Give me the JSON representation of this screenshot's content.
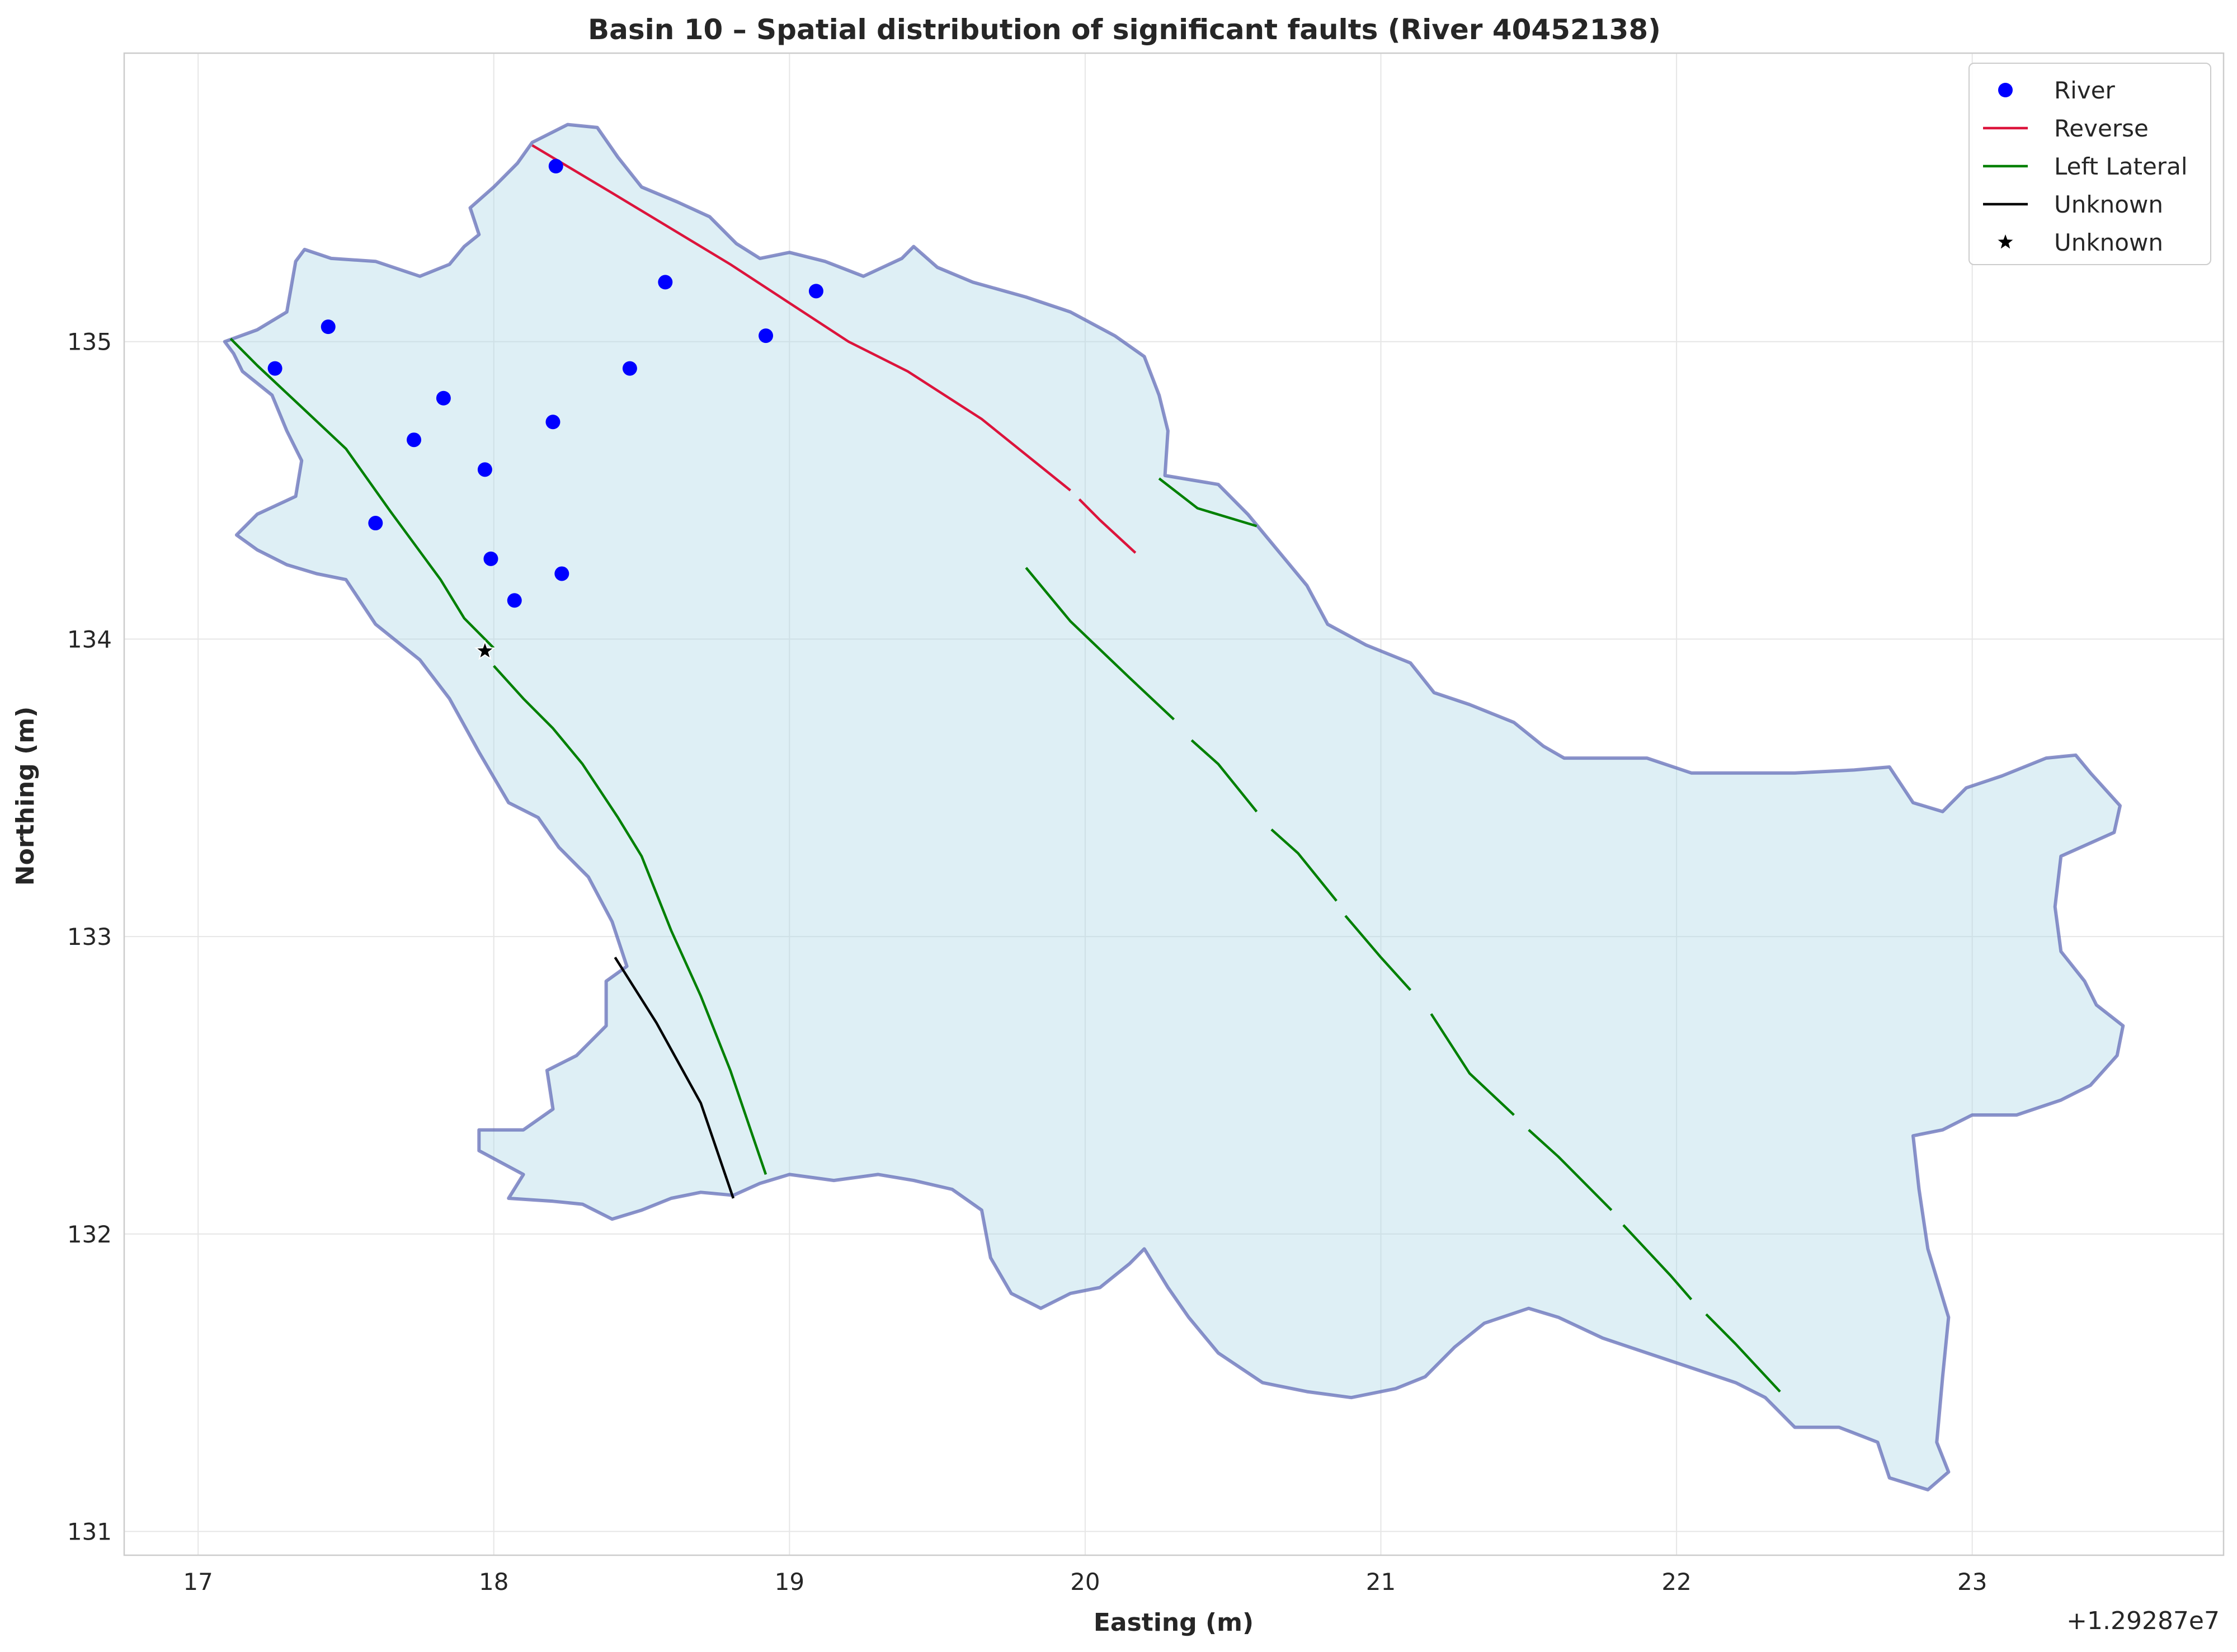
{
  "chart_data": {
    "type": "scatter",
    "title": "Basin 10 – Spatial distribution of significant faults (River 40452138)",
    "xlabel": "Easting (m)",
    "ylabel": "Northing (m)",
    "offset_text": "+1.29287e7",
    "xlim": [
      16.75,
      23.85
    ],
    "ylim": [
      130.92,
      135.97
    ],
    "xticks": [
      17,
      18,
      19,
      20,
      21,
      22,
      23
    ],
    "xtick_labels": [
      "17",
      "18",
      "19",
      "20",
      "21",
      "22",
      "23"
    ],
    "yticks": [
      131,
      132,
      133,
      134,
      135
    ],
    "ytick_labels": [
      "131",
      "132",
      "133",
      "134",
      "135"
    ],
    "grid": true,
    "legend_position": "upper right",
    "legend": [
      {
        "label": "River",
        "kind": "dot",
        "color": "#0000ff"
      },
      {
        "label": "Reverse",
        "kind": "line",
        "color": "#dc143c"
      },
      {
        "label": "Left Lateral",
        "kind": "line",
        "color": "#008000"
      },
      {
        "label": "Unknown",
        "kind": "line",
        "color": "#000000"
      },
      {
        "label": "Unknown",
        "kind": "star",
        "color": "#000000"
      }
    ],
    "basin": {
      "fill": "#add8e6",
      "edge": "#5a64b4",
      "outline": [
        [
          17.09,
          135.0
        ],
        [
          17.2,
          135.04
        ],
        [
          17.3,
          135.1
        ],
        [
          17.33,
          135.27
        ],
        [
          17.36,
          135.31
        ],
        [
          17.45,
          135.28
        ],
        [
          17.6,
          135.27
        ],
        [
          17.75,
          135.22
        ],
        [
          17.85,
          135.26
        ],
        [
          17.9,
          135.32
        ],
        [
          17.95,
          135.36
        ],
        [
          17.92,
          135.45
        ],
        [
          18.0,
          135.52
        ],
        [
          18.08,
          135.6
        ],
        [
          18.13,
          135.67
        ],
        [
          18.25,
          135.73
        ],
        [
          18.35,
          135.72
        ],
        [
          18.42,
          135.62
        ],
        [
          18.5,
          135.52
        ],
        [
          18.62,
          135.47
        ],
        [
          18.73,
          135.42
        ],
        [
          18.82,
          135.33
        ],
        [
          18.9,
          135.28
        ],
        [
          19.0,
          135.3
        ],
        [
          19.12,
          135.27
        ],
        [
          19.25,
          135.22
        ],
        [
          19.38,
          135.28
        ],
        [
          19.42,
          135.32
        ],
        [
          19.5,
          135.25
        ],
        [
          19.62,
          135.2
        ],
        [
          19.8,
          135.15
        ],
        [
          19.95,
          135.1
        ],
        [
          20.1,
          135.02
        ],
        [
          20.2,
          134.95
        ],
        [
          20.25,
          134.82
        ],
        [
          20.28,
          134.7
        ],
        [
          20.27,
          134.55
        ],
        [
          20.45,
          134.52
        ],
        [
          20.55,
          134.42
        ],
        [
          20.65,
          134.3
        ],
        [
          20.75,
          134.18
        ],
        [
          20.82,
          134.05
        ],
        [
          20.95,
          133.98
        ],
        [
          21.1,
          133.92
        ],
        [
          21.18,
          133.82
        ],
        [
          21.3,
          133.78
        ],
        [
          21.45,
          133.72
        ],
        [
          21.55,
          133.64
        ],
        [
          21.62,
          133.6
        ],
        [
          21.75,
          133.6
        ],
        [
          21.9,
          133.6
        ],
        [
          22.05,
          133.55
        ],
        [
          22.2,
          133.55
        ],
        [
          22.4,
          133.55
        ],
        [
          22.6,
          133.56
        ],
        [
          22.72,
          133.57
        ],
        [
          22.8,
          133.45
        ],
        [
          22.9,
          133.42
        ],
        [
          22.98,
          133.5
        ],
        [
          23.1,
          133.54
        ],
        [
          23.25,
          133.6
        ],
        [
          23.35,
          133.61
        ],
        [
          23.4,
          133.55
        ],
        [
          23.5,
          133.44
        ],
        [
          23.48,
          133.35
        ],
        [
          23.3,
          133.27
        ],
        [
          23.28,
          133.1
        ],
        [
          23.3,
          132.95
        ],
        [
          23.38,
          132.85
        ],
        [
          23.42,
          132.77
        ],
        [
          23.51,
          132.7
        ],
        [
          23.49,
          132.6
        ],
        [
          23.4,
          132.5
        ],
        [
          23.3,
          132.45
        ],
        [
          23.15,
          132.4
        ],
        [
          23.0,
          132.4
        ],
        [
          22.9,
          132.35
        ],
        [
          22.8,
          132.33
        ],
        [
          22.82,
          132.15
        ],
        [
          22.85,
          131.95
        ],
        [
          22.92,
          131.72
        ],
        [
          22.9,
          131.52
        ],
        [
          22.88,
          131.3
        ],
        [
          22.92,
          131.2
        ],
        [
          22.85,
          131.14
        ],
        [
          22.72,
          131.18
        ],
        [
          22.68,
          131.3
        ],
        [
          22.55,
          131.35
        ],
        [
          22.4,
          131.35
        ],
        [
          22.3,
          131.45
        ],
        [
          22.2,
          131.5
        ],
        [
          22.05,
          131.55
        ],
        [
          21.9,
          131.6
        ],
        [
          21.75,
          131.65
        ],
        [
          21.6,
          131.72
        ],
        [
          21.5,
          131.75
        ],
        [
          21.35,
          131.7
        ],
        [
          21.25,
          131.62
        ],
        [
          21.15,
          131.52
        ],
        [
          21.05,
          131.48
        ],
        [
          20.9,
          131.45
        ],
        [
          20.75,
          131.47
        ],
        [
          20.6,
          131.5
        ],
        [
          20.45,
          131.6
        ],
        [
          20.35,
          131.72
        ],
        [
          20.28,
          131.82
        ],
        [
          20.2,
          131.95
        ],
        [
          20.15,
          131.9
        ],
        [
          20.05,
          131.82
        ],
        [
          19.95,
          131.8
        ],
        [
          19.85,
          131.75
        ],
        [
          19.75,
          131.8
        ],
        [
          19.68,
          131.92
        ],
        [
          19.65,
          132.08
        ],
        [
          19.55,
          132.15
        ],
        [
          19.42,
          132.18
        ],
        [
          19.3,
          132.2
        ],
        [
          19.15,
          132.18
        ],
        [
          19.0,
          132.2
        ],
        [
          18.9,
          132.17
        ],
        [
          18.81,
          132.13
        ],
        [
          18.7,
          132.14
        ],
        [
          18.6,
          132.12
        ],
        [
          18.5,
          132.08
        ],
        [
          18.4,
          132.05
        ],
        [
          18.3,
          132.1
        ],
        [
          18.2,
          132.11
        ],
        [
          18.05,
          132.12
        ],
        [
          18.1,
          132.2
        ],
        [
          17.95,
          132.28
        ],
        [
          17.95,
          132.35
        ],
        [
          18.1,
          132.35
        ],
        [
          18.2,
          132.42
        ],
        [
          18.18,
          132.55
        ],
        [
          18.28,
          132.6
        ],
        [
          18.38,
          132.7
        ],
        [
          18.38,
          132.85
        ],
        [
          18.45,
          132.9
        ],
        [
          18.4,
          133.05
        ],
        [
          18.32,
          133.2
        ],
        [
          18.22,
          133.3
        ],
        [
          18.15,
          133.4
        ],
        [
          18.05,
          133.45
        ],
        [
          17.95,
          133.62
        ],
        [
          17.85,
          133.8
        ],
        [
          17.75,
          133.93
        ],
        [
          17.6,
          134.05
        ],
        [
          17.5,
          134.2
        ],
        [
          17.4,
          134.22
        ],
        [
          17.3,
          134.25
        ],
        [
          17.2,
          134.3
        ],
        [
          17.13,
          134.35
        ],
        [
          17.2,
          134.42
        ],
        [
          17.33,
          134.48
        ],
        [
          17.35,
          134.6
        ],
        [
          17.3,
          134.7
        ],
        [
          17.25,
          134.82
        ],
        [
          17.15,
          134.9
        ],
        [
          17.12,
          134.96
        ]
      ]
    },
    "series": [
      {
        "name": "River",
        "kind": "points",
        "points": [
          [
            18.21,
            135.59
          ],
          [
            18.58,
            135.2
          ],
          [
            19.09,
            135.17
          ],
          [
            17.44,
            135.05
          ],
          [
            18.92,
            135.02
          ],
          [
            17.26,
            134.91
          ],
          [
            18.46,
            134.91
          ],
          [
            17.83,
            134.81
          ],
          [
            18.2,
            134.73
          ],
          [
            17.73,
            134.67
          ],
          [
            17.97,
            134.57
          ],
          [
            17.6,
            134.39
          ],
          [
            17.99,
            134.27
          ],
          [
            18.23,
            134.22
          ],
          [
            18.07,
            134.13
          ]
        ]
      },
      {
        "name": "Reverse",
        "kind": "lines",
        "segments": [
          [
            [
              18.13,
              135.66
            ],
            [
              18.4,
              135.5
            ],
            [
              18.8,
              135.26
            ],
            [
              19.2,
              135.0
            ],
            [
              19.4,
              134.9
            ],
            [
              19.65,
              134.74
            ],
            [
              19.95,
              134.5
            ]
          ],
          [
            [
              19.98,
              134.47
            ],
            [
              20.05,
              134.4
            ],
            [
              20.17,
              134.29
            ]
          ]
        ]
      },
      {
        "name": "Left Lateral",
        "kind": "lines",
        "segments": [
          [
            [
              17.11,
              135.01
            ],
            [
              17.2,
              134.92
            ],
            [
              17.35,
              134.78
            ],
            [
              17.5,
              134.64
            ],
            [
              17.65,
              134.43
            ],
            [
              17.82,
              134.2
            ],
            [
              17.9,
              134.07
            ],
            [
              18.0,
              133.97
            ]
          ],
          [
            [
              18.0,
              133.91
            ],
            [
              18.1,
              133.8
            ],
            [
              18.2,
              133.7
            ],
            [
              18.3,
              133.58
            ],
            [
              18.42,
              133.4
            ],
            [
              18.5,
              133.27
            ],
            [
              18.6,
              133.02
            ],
            [
              18.7,
              132.8
            ],
            [
              18.8,
              132.55
            ],
            [
              18.92,
              132.2
            ]
          ],
          [
            [
              20.25,
              134.54
            ],
            [
              20.38,
              134.44
            ],
            [
              20.58,
              134.38
            ]
          ],
          [
            [
              19.8,
              134.24
            ],
            [
              19.95,
              134.06
            ],
            [
              20.15,
              133.87
            ],
            [
              20.3,
              133.73
            ]
          ],
          [
            [
              20.36,
              133.66
            ],
            [
              20.45,
              133.58
            ],
            [
              20.58,
              133.42
            ]
          ],
          [
            [
              20.63,
              133.36
            ],
            [
              20.72,
              133.28
            ],
            [
              20.85,
              133.12
            ]
          ],
          [
            [
              20.88,
              133.07
            ],
            [
              21.0,
              132.93
            ],
            [
              21.1,
              132.82
            ]
          ],
          [
            [
              21.17,
              132.74
            ],
            [
              21.3,
              132.54
            ],
            [
              21.45,
              132.4
            ]
          ],
          [
            [
              21.5,
              132.35
            ],
            [
              21.6,
              132.26
            ],
            [
              21.78,
              132.08
            ]
          ],
          [
            [
              21.82,
              132.03
            ],
            [
              21.98,
              131.86
            ],
            [
              22.05,
              131.78
            ]
          ],
          [
            [
              22.1,
              131.73
            ],
            [
              22.2,
              131.63
            ],
            [
              22.35,
              131.47
            ]
          ]
        ]
      },
      {
        "name": "Unknown",
        "kind": "lines",
        "segments": [
          [
            [
              18.41,
              132.93
            ],
            [
              18.55,
              132.71
            ],
            [
              18.7,
              132.44
            ],
            [
              18.81,
              132.12
            ]
          ]
        ]
      },
      {
        "name": "Unknown",
        "kind": "star",
        "points": [
          [
            17.97,
            133.96
          ]
        ]
      }
    ]
  }
}
